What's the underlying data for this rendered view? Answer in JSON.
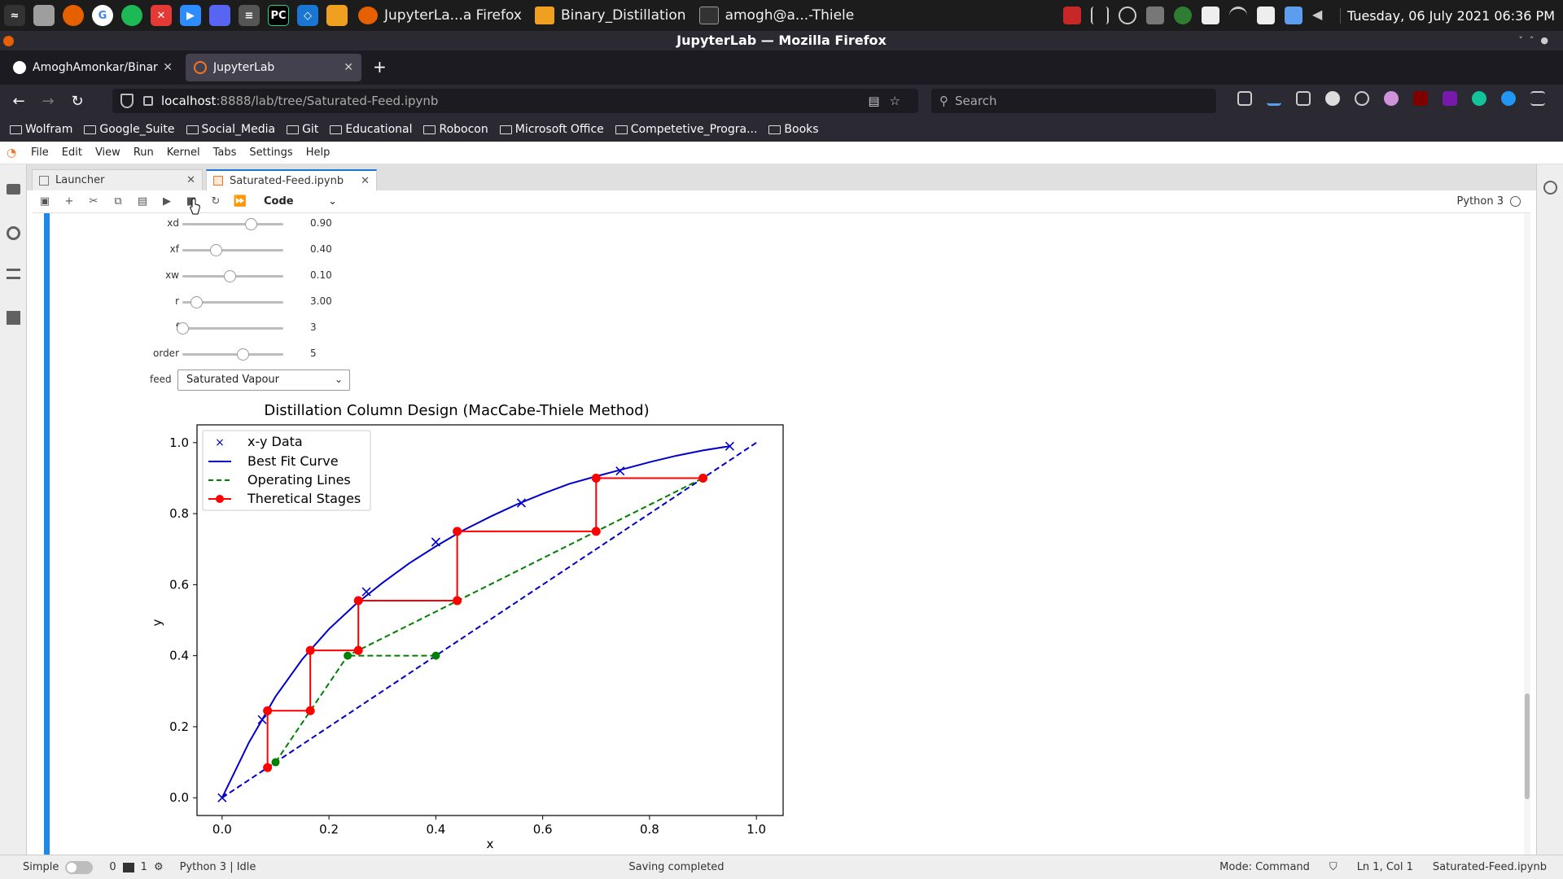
{
  "taskbar": {
    "tasks": [
      {
        "label": "JupyterLa...a Firefox",
        "icon": "firefox-icon"
      },
      {
        "label": "Binary_Distillation",
        "icon": "folder-icon"
      },
      {
        "label": "amogh@a...-Thiele",
        "icon": "terminal-icon"
      }
    ],
    "clock": "Tuesday, 06 July 2021 06:36 PM"
  },
  "window": {
    "title": "JupyterLab — Mozilla Firefox"
  },
  "browser": {
    "tabs": [
      {
        "label": "AmoghAmonkar/Binary_I",
        "active": false
      },
      {
        "label": "JupyterLab",
        "active": true
      }
    ],
    "url_host": "localhost",
    "url_path": ":8888/lab/tree/Saturated-Feed.ipynb",
    "search_placeholder": "Search",
    "bookmarks": [
      "Wolfram",
      "Google_Suite",
      "Social_Media",
      "Git",
      "Educational",
      "Robocon",
      "Microsoft Office",
      "Competetive_Progra...",
      "Books"
    ]
  },
  "jupyter": {
    "menu": [
      "File",
      "Edit",
      "View",
      "Run",
      "Kernel",
      "Tabs",
      "Settings",
      "Help"
    ],
    "doc_tabs": [
      {
        "label": "Launcher",
        "active": false
      },
      {
        "label": "Saturated-Feed.ipynb",
        "active": true
      }
    ],
    "cell_type": "Code",
    "kernel": "Python 3"
  },
  "widgets": {
    "sliders": [
      {
        "label": "xd",
        "value": "0.90",
        "position": 0.68
      },
      {
        "label": "xf",
        "value": "0.40",
        "position": 0.33
      },
      {
        "label": "xw",
        "value": "0.10",
        "position": 0.47
      },
      {
        "label": "r",
        "value": "3.00",
        "position": 0.14
      },
      {
        "label": "f",
        "value": "3",
        "position": 0.0
      },
      {
        "label": "order",
        "value": "5",
        "position": 0.6
      }
    ],
    "feed_label": "feed",
    "feed_value": "Saturated Vapour"
  },
  "chart_data": {
    "type": "line",
    "title": "Distillation Column Design (MacCabe-Thiele Method)",
    "xlabel": "x",
    "ylabel": "y",
    "xlim": [
      -0.047,
      1.05
    ],
    "ylim": [
      -0.05,
      1.05
    ],
    "xticks": [
      "0.0",
      "0.2",
      "0.4",
      "0.6",
      "0.8",
      "1.0"
    ],
    "yticks": [
      "0.0",
      "0.2",
      "0.4",
      "0.6",
      "0.8",
      "1.0"
    ],
    "legend_position": "top-left",
    "series": [
      {
        "name": "x-y Data",
        "color": "#0000cc",
        "style": "x-markers",
        "x": [
          0.0,
          0.075,
          0.27,
          0.4,
          0.56,
          0.745,
          0.95
        ],
        "y": [
          0.0,
          0.22,
          0.58,
          0.72,
          0.83,
          0.92,
          0.99
        ]
      },
      {
        "name": "Best Fit Curve",
        "color": "#0000cc",
        "style": "solid",
        "x": [
          0.0,
          0.05,
          0.1,
          0.15,
          0.2,
          0.25,
          0.3,
          0.35,
          0.4,
          0.45,
          0.5,
          0.55,
          0.6,
          0.65,
          0.7,
          0.75,
          0.8,
          0.85,
          0.9,
          0.95
        ],
        "y": [
          0.0,
          0.155,
          0.285,
          0.39,
          0.475,
          0.545,
          0.605,
          0.66,
          0.708,
          0.752,
          0.79,
          0.825,
          0.856,
          0.884,
          0.905,
          0.925,
          0.945,
          0.963,
          0.978,
          0.99
        ]
      },
      {
        "name": "Operating Lines",
        "color": "#008000",
        "style": "dashed",
        "x": [
          0.1,
          0.235,
          0.9
        ],
        "y": [
          0.1,
          0.4,
          0.9
        ]
      },
      {
        "name": "Theretical Stages",
        "color": "#ff0000",
        "style": "solid-dots",
        "x": [
          0.9,
          0.7,
          0.7,
          0.44,
          0.44,
          0.255,
          0.255,
          0.165,
          0.165,
          0.085,
          0.085
        ],
        "y": [
          0.9,
          0.9,
          0.75,
          0.75,
          0.555,
          0.555,
          0.415,
          0.415,
          0.245,
          0.245,
          0.085
        ]
      }
    ],
    "diagonal": {
      "color": "#0000cc",
      "style": "dashed",
      "x": [
        0.0,
        1.0
      ],
      "y": [
        0.0,
        1.0
      ]
    },
    "feed_line": {
      "color": "#008000",
      "style": "dashed-dots",
      "x": [
        0.4,
        0.235
      ],
      "y": [
        0.4,
        0.4
      ]
    },
    "green_points": {
      "x": [
        0.1,
        0.235,
        0.4
      ],
      "y": [
        0.1,
        0.4,
        0.4
      ]
    }
  },
  "statusbar": {
    "mode_label": "Simple",
    "terminals": "0",
    "kernels": "1",
    "kernel_status": "Python 3 | Idle",
    "message": "Saving completed",
    "mode": "Mode: Command",
    "position": "Ln 1, Col 1",
    "filename": "Saturated-Feed.ipynb"
  }
}
